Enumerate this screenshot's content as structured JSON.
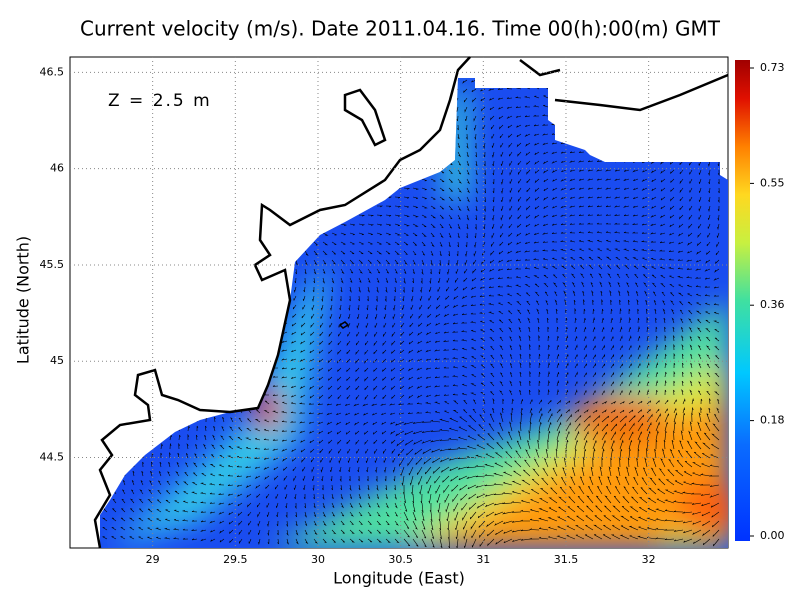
{
  "chart_data": {
    "type": "map",
    "title": "Current velocity (m/s). Date 2011.04.16. Time 00(h):00(m) GMT",
    "annotation": "Z = 2.5 m",
    "x_label": "Longitude (East)",
    "y_label": "Latitude (North)",
    "xlim": [
      28.5,
      32.48
    ],
    "ylim": [
      44.03,
      46.58
    ],
    "xticks": [
      29,
      29.5,
      30,
      30.5,
      31,
      31.5,
      32
    ],
    "yticks": [
      44.5,
      45,
      45.5,
      46,
      46.5
    ],
    "grid": true,
    "colorbar": {
      "lim": [
        0,
        0.73
      ],
      "ticks": [
        {
          "value": 0,
          "label": "0.00"
        },
        0.18,
        0.36,
        0.55,
        0.73
      ]
    }
  }
}
